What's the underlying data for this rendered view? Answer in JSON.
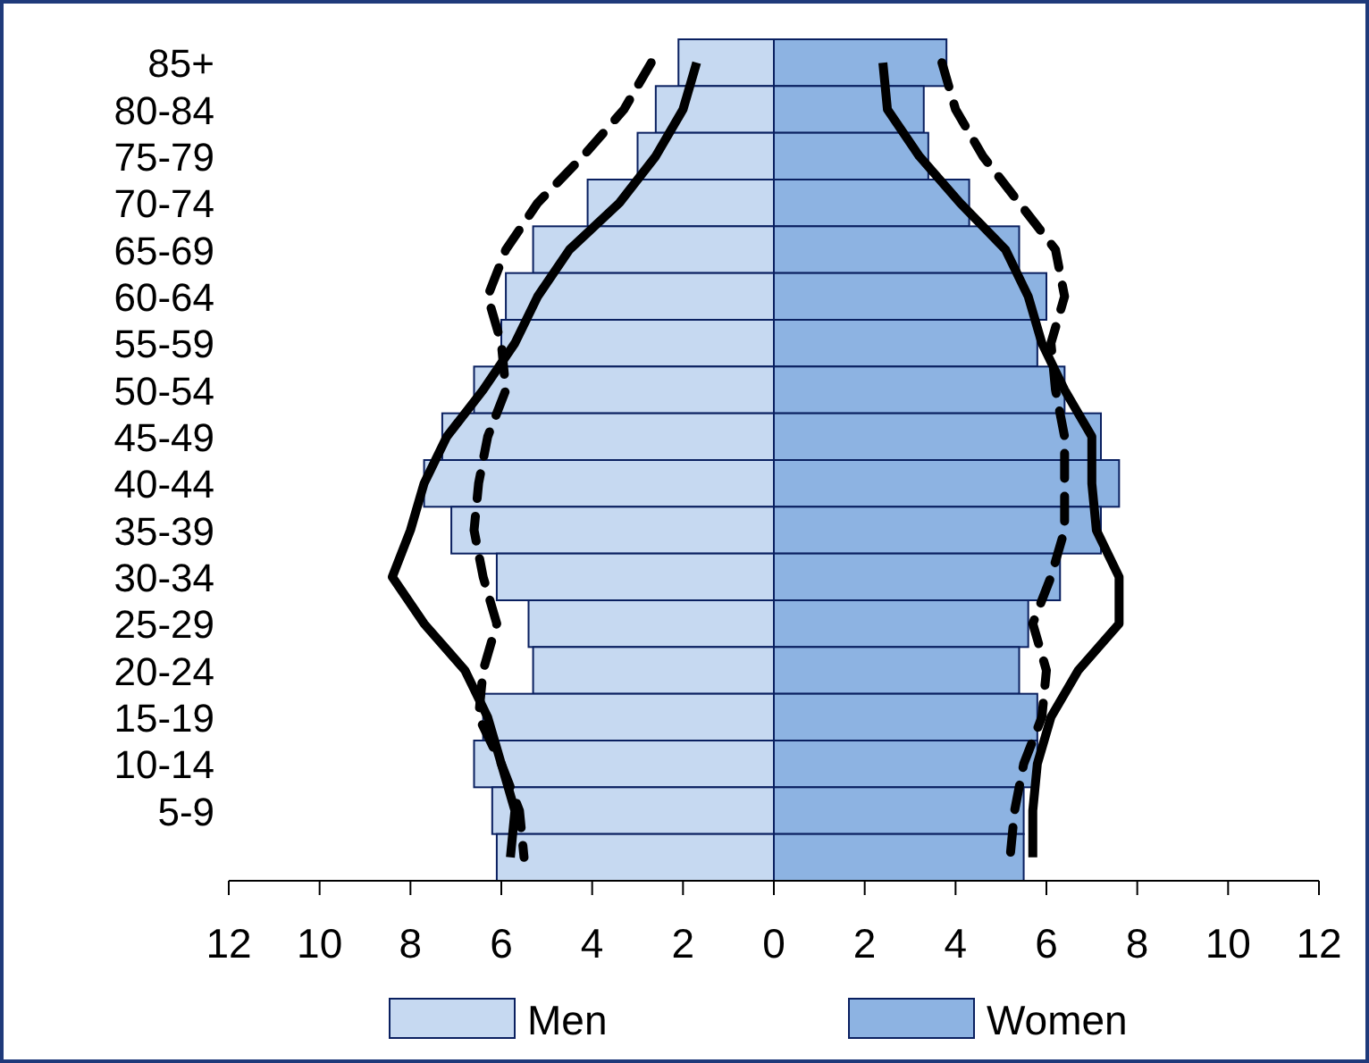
{
  "chart_data": {
    "type": "bar",
    "orientation": "horizontal",
    "stacked": true,
    "legend": "bottom",
    "grid": false,
    "categories": [
      "85+",
      "80-84",
      "75-79",
      "70-74",
      "65-69",
      "60-64",
      "55-59",
      "50-54",
      "45-49",
      "40-44",
      "35-39",
      "30-34",
      "25-29",
      "20-24",
      "15-19",
      "10-14",
      "5-9",
      null
    ],
    "xlim": [
      -12,
      12
    ],
    "xticks": [
      {
        "value": -12,
        "label": "12"
      },
      {
        "value": -10,
        "label": "10"
      },
      {
        "value": -8,
        "label": "8"
      },
      {
        "value": -6,
        "label": "6"
      },
      {
        "value": -4,
        "label": "4"
      },
      {
        "value": -2,
        "label": "2"
      },
      0,
      2,
      4,
      6,
      8,
      10,
      12
    ],
    "series": [
      {
        "name": "Men",
        "color": "#c6d9f1",
        "values": [
          -2.1,
          -2.6,
          -3.0,
          -4.1,
          -5.3,
          -5.9,
          -6.0,
          -6.6,
          -7.3,
          -7.7,
          -7.1,
          -6.1,
          -5.4,
          -5.3,
          -6.4,
          -6.6,
          -6.2,
          -6.1
        ]
      },
      {
        "name": "Women",
        "color": "#8db3e2",
        "values": [
          3.8,
          3.3,
          3.4,
          4.3,
          5.4,
          6.0,
          5.8,
          6.4,
          7.2,
          7.6,
          7.2,
          6.3,
          5.6,
          5.4,
          5.8,
          5.8,
          5.5,
          5.5
        ]
      },
      {
        "type": "line",
        "line_style": "solid",
        "color": "#000000",
        "values": [
          -1.7,
          -2.0,
          -2.6,
          -3.4,
          -4.5,
          -5.2,
          -5.7,
          -6.4,
          -7.2,
          -7.7,
          -8.0,
          -8.4,
          -7.7,
          -6.8,
          -6.3,
          -6.0,
          -5.7,
          -5.8
        ]
      },
      {
        "type": "line",
        "line_style": "dashed",
        "color": "#000000",
        "values": [
          -2.7,
          -3.3,
          -4.2,
          -5.2,
          -5.9,
          -6.3,
          -6.0,
          -5.9,
          -6.3,
          -6.5,
          -6.6,
          -6.4,
          -6.1,
          -6.4,
          -6.5,
          -6.0,
          -5.6,
          -5.5
        ]
      },
      {
        "type": "line",
        "line_style": "solid",
        "color": "#000000",
        "values": [
          2.4,
          2.5,
          3.2,
          4.1,
          5.1,
          5.6,
          5.9,
          6.4,
          7.0,
          7.0,
          7.1,
          7.6,
          7.6,
          6.7,
          6.1,
          5.8,
          5.7,
          5.7
        ]
      },
      {
        "type": "line",
        "line_style": "dashed",
        "color": "#000000",
        "values": [
          3.7,
          4.0,
          4.6,
          5.4,
          6.2,
          6.4,
          6.1,
          6.2,
          6.4,
          6.4,
          6.4,
          6.1,
          5.7,
          6.0,
          5.9,
          5.5,
          5.3,
          5.2
        ]
      }
    ]
  }
}
